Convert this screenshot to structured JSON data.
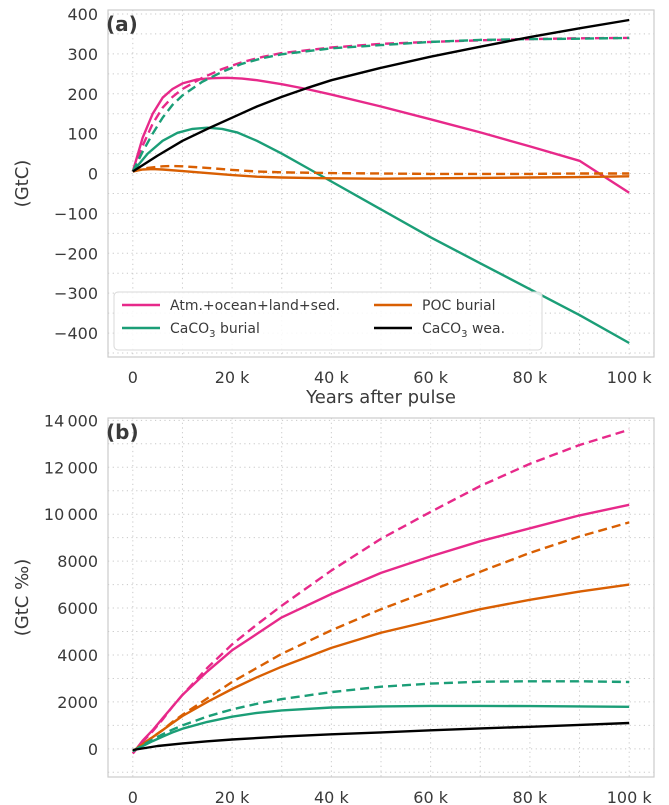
{
  "chart_data": [
    {
      "type": "line",
      "panel_label": "(a)",
      "xlabel": "Years after pulse",
      "ylabel": "(GtC)",
      "xlim": [
        -5000,
        105000
      ],
      "ylim": [
        -460,
        410
      ],
      "xticks": [
        0,
        20000,
        40000,
        60000,
        80000,
        100000
      ],
      "xtick_labels": [
        "0",
        "20 k",
        "40 k",
        "60 k",
        "80 k",
        "100 k"
      ],
      "yticks": [
        400,
        300,
        200,
        100,
        0,
        -100,
        -200,
        -300,
        -400
      ],
      "ytick_labels": [
        "400",
        "300",
        "200",
        "100",
        "0",
        "−100",
        "−200",
        "−300",
        "−400"
      ],
      "grid": true,
      "grid_style": "dotted",
      "legend_position": "lower-left",
      "legend": [
        {
          "label_main": "Atm.+ocean+land+sed.",
          "label_sub": "",
          "label_tail": "",
          "color": "#e7298a"
        },
        {
          "label_main": "POC burial",
          "label_sub": "",
          "label_tail": "",
          "color": "#d95f02"
        },
        {
          "label_main": "CaCO",
          "label_sub": "3",
          "label_tail": " burial",
          "color": "#1b9e77"
        },
        {
          "label_main": "CaCO",
          "label_sub": "3",
          "label_tail": " wea.",
          "color": "#000000"
        }
      ],
      "series": [
        {
          "color": "#e7298a",
          "style": "solid",
          "x": [
            0,
            2000,
            4000,
            6000,
            8000,
            10000,
            13000,
            16000,
            19000,
            22000,
            25000,
            30000,
            35000,
            40000,
            50000,
            60000,
            70000,
            80000,
            90000,
            100000
          ],
          "y": [
            5,
            90,
            150,
            190,
            212,
            226,
            236,
            239,
            240,
            238,
            234,
            224,
            212,
            198,
            168,
            136,
            103,
            68,
            32,
            -48
          ]
        },
        {
          "color": "#e7298a",
          "style": "dashed",
          "x": [
            0,
            2000,
            4000,
            6000,
            8000,
            10000,
            14000,
            18000,
            22000,
            26000,
            30000,
            40000,
            50000,
            60000,
            70000,
            80000,
            90000,
            100000
          ],
          "y": [
            5,
            70,
            125,
            165,
            192,
            212,
            240,
            262,
            279,
            292,
            302,
            316,
            325,
            330,
            334,
            337,
            339,
            340
          ]
        },
        {
          "color": "#1b9e77",
          "style": "solid",
          "x": [
            0,
            3000,
            6000,
            9000,
            12000,
            15000,
            18000,
            21000,
            25000,
            30000,
            35000,
            40000,
            50000,
            60000,
            70000,
            80000,
            90000,
            100000
          ],
          "y": [
            5,
            50,
            82,
            102,
            112,
            115,
            112,
            103,
            82,
            50,
            15,
            -20,
            -90,
            -160,
            -225,
            -290,
            -355,
            -425
          ]
        },
        {
          "color": "#1b9e77",
          "style": "dashed",
          "x": [
            0,
            2000,
            4000,
            6000,
            8000,
            10000,
            14000,
            18000,
            22000,
            26000,
            30000,
            40000,
            50000,
            60000,
            70000,
            80000,
            90000,
            100000
          ],
          "y": [
            5,
            55,
            100,
            140,
            172,
            196,
            230,
            255,
            275,
            289,
            299,
            314,
            322,
            330,
            335,
            337,
            338,
            340
          ]
        },
        {
          "color": "#d95f02",
          "style": "solid",
          "x": [
            0,
            2000,
            4000,
            6000,
            10000,
            15000,
            20000,
            25000,
            30000,
            35000,
            40000,
            50000,
            60000,
            70000,
            80000,
            90000,
            100000
          ],
          "y": [
            5,
            10,
            11,
            10,
            6,
            1,
            -4,
            -8,
            -10,
            -11,
            -12,
            -13,
            -12,
            -11,
            -10,
            -9,
            -7
          ]
        },
        {
          "color": "#d95f02",
          "style": "dashed",
          "x": [
            0,
            3000,
            6000,
            8000,
            10000,
            15000,
            20000,
            25000,
            30000,
            40000,
            50000,
            60000,
            70000,
            80000,
            90000,
            100000
          ],
          "y": [
            5,
            14,
            18,
            19,
            18,
            14,
            9,
            5,
            3,
            1,
            0,
            -1,
            -1,
            -1,
            0,
            0
          ]
        },
        {
          "color": "#000000",
          "style": "solid",
          "x": [
            0,
            5000,
            10000,
            15000,
            20000,
            25000,
            30000,
            35000,
            40000,
            50000,
            60000,
            70000,
            80000,
            90000,
            100000
          ],
          "y": [
            5,
            45,
            82,
            112,
            140,
            168,
            192,
            214,
            234,
            265,
            293,
            318,
            342,
            364,
            385
          ]
        }
      ]
    },
    {
      "type": "line",
      "panel_label": "(b)",
      "xlabel": "",
      "ylabel": "(GtC ‰)",
      "xlim": [
        -5000,
        105000
      ],
      "ylim": [
        -1200,
        14100
      ],
      "xticks": [
        0,
        20000,
        40000,
        60000,
        80000,
        100000
      ],
      "xtick_labels": [
        "0",
        "20 k",
        "40 k",
        "60 k",
        "80 k",
        "100 k"
      ],
      "yticks": [
        14000,
        12000,
        10000,
        8000,
        6000,
        4000,
        2000,
        0
      ],
      "ytick_labels": [
        "14 000",
        "12 000",
        "10 000",
        "8000",
        "6000",
        "4000",
        "2000",
        "0"
      ],
      "grid": true,
      "grid_style": "dotted",
      "series": [
        {
          "color": "#e7298a",
          "style": "solid",
          "x": [
            0,
            2000,
            4000,
            6000,
            8000,
            10000,
            15000,
            20000,
            25000,
            30000,
            40000,
            50000,
            60000,
            70000,
            80000,
            90000,
            100000
          ],
          "y": [
            -200,
            350,
            800,
            1300,
            1800,
            2300,
            3300,
            4200,
            4900,
            5600,
            6600,
            7500,
            8200,
            8850,
            9400,
            9950,
            10400
          ]
        },
        {
          "color": "#e7298a",
          "style": "dashed",
          "x": [
            0,
            2000,
            4000,
            6000,
            8000,
            10000,
            15000,
            20000,
            25000,
            30000,
            40000,
            50000,
            60000,
            70000,
            80000,
            90000,
            100000
          ],
          "y": [
            -200,
            300,
            750,
            1250,
            1800,
            2300,
            3450,
            4450,
            5300,
            6100,
            7600,
            8950,
            10100,
            11200,
            12150,
            12950,
            13600
          ]
        },
        {
          "color": "#d95f02",
          "style": "solid",
          "x": [
            0,
            2000,
            4000,
            6000,
            8000,
            10000,
            15000,
            20000,
            25000,
            30000,
            40000,
            50000,
            60000,
            70000,
            80000,
            90000,
            100000
          ],
          "y": [
            -100,
            200,
            500,
            800,
            1100,
            1400,
            2000,
            2550,
            3050,
            3500,
            4300,
            4950,
            5450,
            5950,
            6350,
            6700,
            7000
          ]
        },
        {
          "color": "#d95f02",
          "style": "dashed",
          "x": [
            0,
            2000,
            4000,
            6000,
            8000,
            10000,
            15000,
            20000,
            25000,
            30000,
            40000,
            50000,
            60000,
            70000,
            80000,
            90000,
            100000
          ],
          "y": [
            -100,
            200,
            500,
            800,
            1150,
            1450,
            2150,
            2850,
            3450,
            4050,
            5050,
            5950,
            6750,
            7550,
            8350,
            9050,
            9650
          ]
        },
        {
          "color": "#1b9e77",
          "style": "solid",
          "x": [
            0,
            2000,
            4000,
            6000,
            8000,
            10000,
            15000,
            20000,
            25000,
            30000,
            40000,
            50000,
            60000,
            70000,
            80000,
            90000,
            100000
          ],
          "y": [
            -100,
            120,
            330,
            520,
            700,
            860,
            1150,
            1370,
            1530,
            1640,
            1760,
            1810,
            1830,
            1830,
            1820,
            1810,
            1790
          ]
        },
        {
          "color": "#1b9e77",
          "style": "dashed",
          "x": [
            0,
            2000,
            4000,
            6000,
            8000,
            10000,
            15000,
            20000,
            25000,
            30000,
            40000,
            50000,
            60000,
            70000,
            80000,
            90000,
            100000
          ],
          "y": [
            -100,
            150,
            400,
            620,
            820,
            1000,
            1380,
            1680,
            1920,
            2120,
            2420,
            2650,
            2780,
            2860,
            2880,
            2880,
            2850
          ]
        },
        {
          "color": "#000000",
          "style": "solid",
          "x": [
            0,
            5000,
            10000,
            15000,
            20000,
            30000,
            40000,
            50000,
            60000,
            70000,
            80000,
            90000,
            100000
          ],
          "y": [
            -50,
            120,
            230,
            320,
            400,
            520,
            620,
            700,
            790,
            870,
            940,
            1020,
            1100
          ]
        }
      ]
    }
  ]
}
